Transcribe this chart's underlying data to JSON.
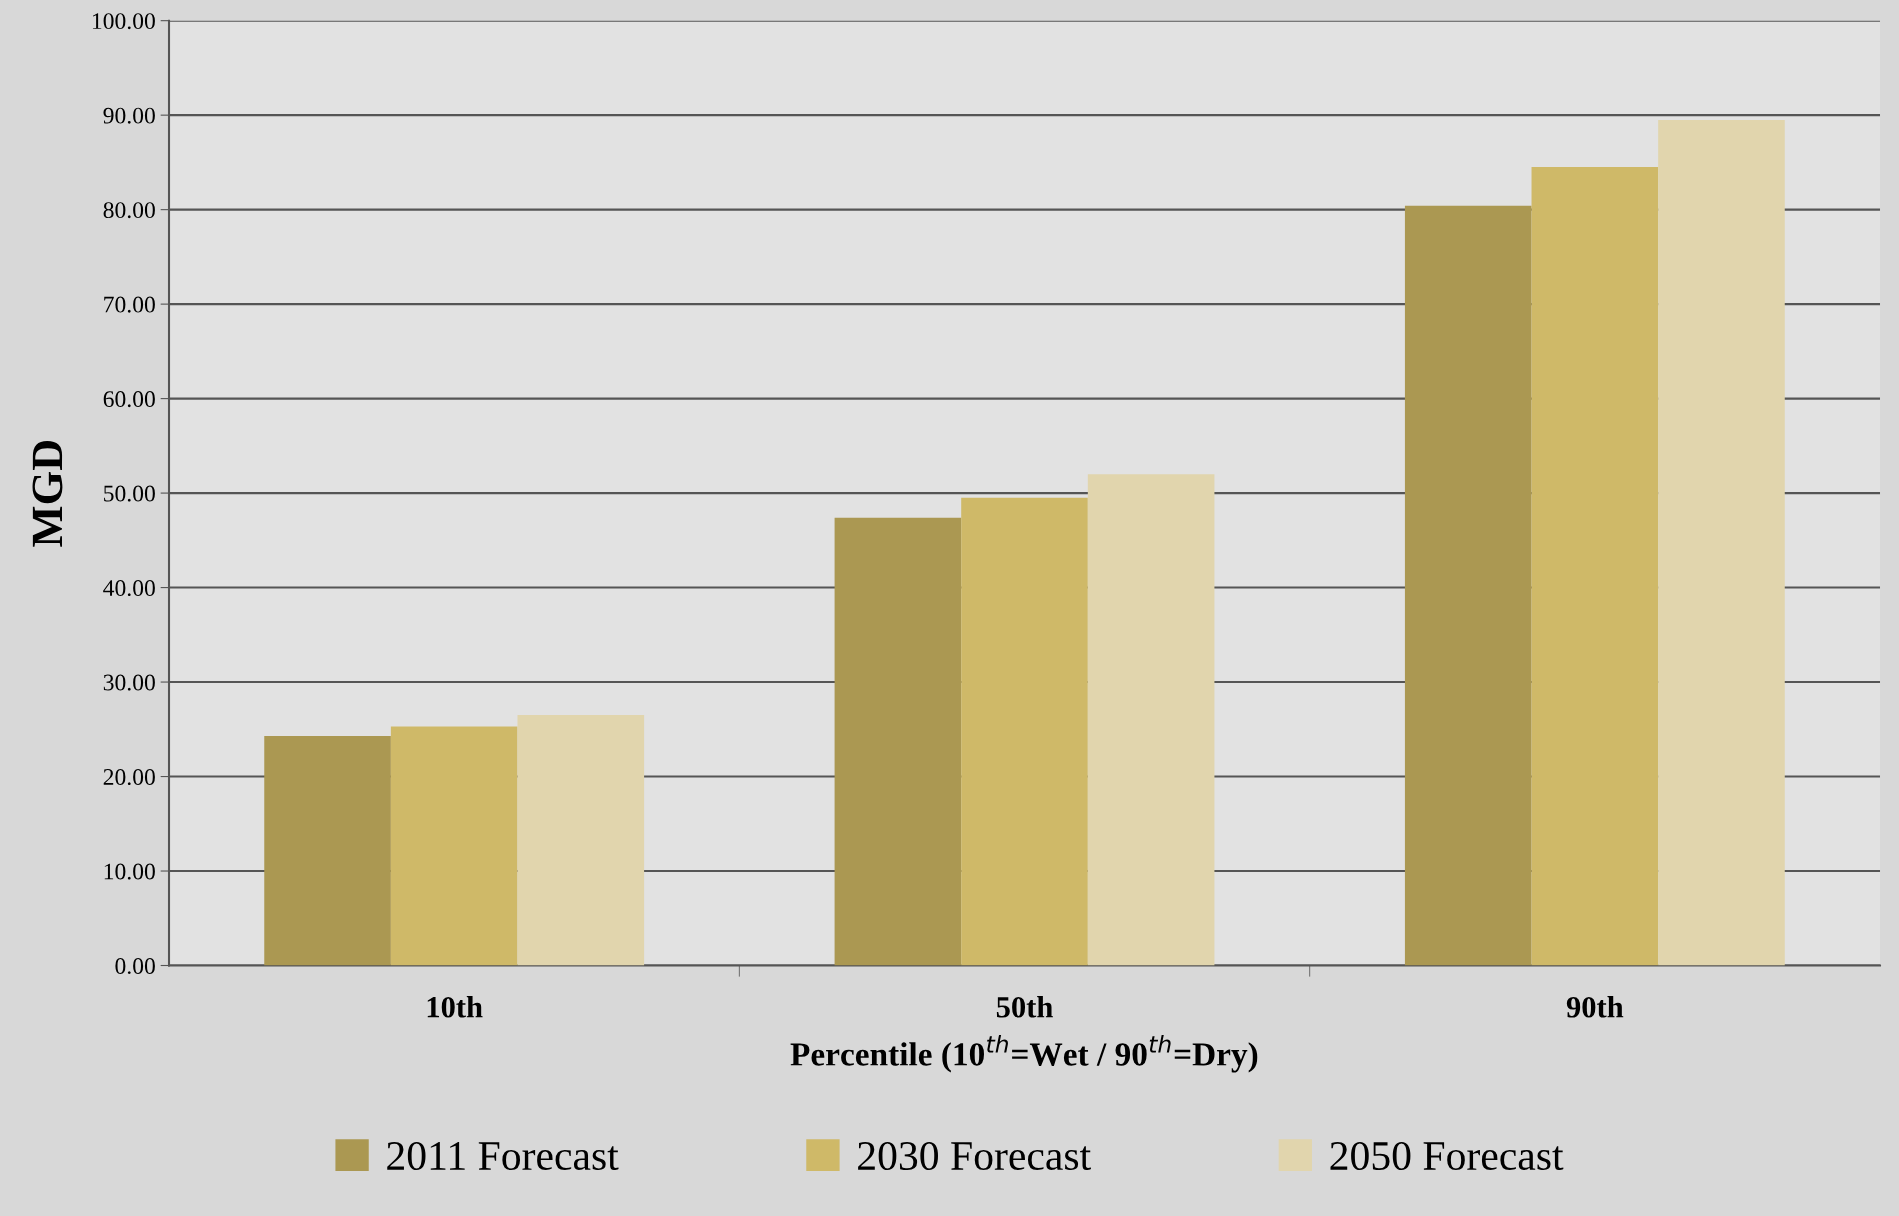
{
  "chart_data": {
    "type": "bar",
    "xlabel": "Percentile (10$^{th}$=Wet / 90$^{th}$=Dry)",
    "ylabel": "MGD",
    "categories": [
      "10th",
      "50th",
      "90th"
    ],
    "series": [
      {
        "name": "2011 Forecast",
        "color": "#ab9852",
        "values": [
          24.3,
          47.4,
          80.4
        ]
      },
      {
        "name": "2030 Forecast",
        "color": "#cfb968",
        "values": [
          25.3,
          49.5,
          84.5
        ]
      },
      {
        "name": "2050 Forecast",
        "color": "#e1d5ad",
        "values": [
          26.5,
          52.0,
          89.5
        ]
      }
    ],
    "ylim": [
      0,
      100
    ],
    "yticks": [
      {
        "value": 0,
        "label": "0.00"
      },
      {
        "value": 10,
        "label": "10.00"
      },
      {
        "value": 20,
        "label": "20.00"
      },
      {
        "value": 30,
        "label": "30.00"
      },
      {
        "value": 40,
        "label": "40.00"
      },
      {
        "value": 50,
        "label": "50.00"
      },
      {
        "value": 60,
        "label": "60.00"
      },
      {
        "value": 70,
        "label": "70.00"
      },
      {
        "value": 80,
        "label": "80.00"
      },
      {
        "value": 90,
        "label": "90.00"
      },
      {
        "value": 100,
        "label": "100.00"
      }
    ],
    "grid": "y",
    "legend": "bottom"
  }
}
